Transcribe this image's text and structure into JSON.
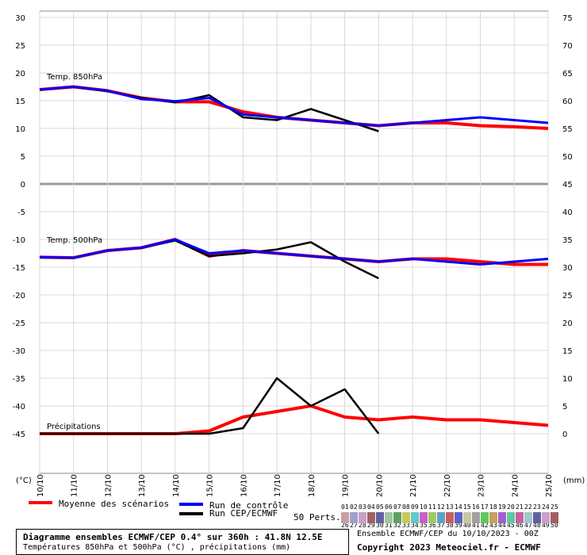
{
  "chart_data": {
    "type": "line",
    "left_axis": {
      "unit": "(°C)",
      "ticks": [
        30,
        25,
        20,
        15,
        10,
        5,
        0,
        -5,
        -10,
        -15,
        -20,
        -25,
        -30,
        -35,
        -40,
        -45
      ],
      "ylim": [
        -52,
        31
      ]
    },
    "right_axis": {
      "unit": "(mm)",
      "ticks": [
        75,
        70,
        65,
        60,
        55,
        50,
        45,
        40,
        35,
        30,
        25,
        20,
        15,
        10,
        5,
        0
      ]
    },
    "x_labels": [
      "10/10",
      "11/10",
      "12/10",
      "13/10",
      "14/10",
      "15/10",
      "16/10",
      "17/10",
      "18/10",
      "19/10",
      "20/10",
      "21/10",
      "22/10",
      "23/10",
      "24/10",
      "25/10"
    ],
    "panel_labels": {
      "t850": "Temp. 850hPa",
      "t500": "Temp. 500hPa",
      "precip": "Précipitations"
    },
    "grid": true,
    "series": [
      {
        "name": "Moyenne des scénarios",
        "color": "#ff0000",
        "panel": "t850",
        "values": [
          17,
          17.5,
          16.8,
          15.5,
          14.8,
          14.8,
          13,
          12,
          11.5,
          11,
          10.5,
          11,
          11,
          10.5,
          10.3,
          10
        ]
      },
      {
        "name": "Run CEP/ECMWF",
        "color": "#000000",
        "panel": "t850",
        "values": [
          17,
          17.5,
          16.7,
          15.5,
          14.7,
          16,
          12,
          11.5,
          13.5,
          11.5,
          9.5
        ]
      },
      {
        "name": "Run de contrôle",
        "color": "#0000ff",
        "panel": "t850",
        "values": [
          17,
          17.5,
          16.8,
          15.3,
          14.9,
          15.5,
          12.5,
          12,
          11.5,
          11,
          10.5,
          11,
          11.5,
          12,
          11.5,
          11
        ]
      },
      {
        "name": "Moyenne des scénarios",
        "color": "#ff0000",
        "panel": "t500",
        "values": [
          -13.2,
          -13.3,
          -12,
          -11.5,
          -10,
          -13,
          -12,
          -12.5,
          -13,
          -13.5,
          -14,
          -13.5,
          -13.5,
          -14,
          -14.5,
          -14.5
        ]
      },
      {
        "name": "Run CEP/ECMWF",
        "color": "#000000",
        "panel": "t500",
        "values": [
          -13.2,
          -13.3,
          -12,
          -11.5,
          -10.2,
          -13,
          -12.5,
          -11.8,
          -10.5,
          -14,
          -17
        ]
      },
      {
        "name": "Run de contrôle",
        "color": "#0000ff",
        "panel": "t500",
        "values": [
          -13.2,
          -13.3,
          -12,
          -11.5,
          -10,
          -12.5,
          -12,
          -12.5,
          -13,
          -13.5,
          -14,
          -13.5,
          -14,
          -14.5,
          -14,
          -13.5
        ]
      },
      {
        "name": "Moyenne des scénarios",
        "color": "#ff0000",
        "panel": "precip",
        "values": [
          0,
          0,
          0,
          0,
          0,
          0.5,
          3,
          4,
          5,
          3,
          2.5,
          3,
          2.5,
          2.5,
          2,
          1.5
        ]
      },
      {
        "name": "Run CEP/ECMWF",
        "color": "#000000",
        "panel": "precip",
        "values": [
          0,
          0,
          0,
          0,
          0,
          0,
          1,
          10,
          5,
          8,
          0
        ]
      }
    ]
  },
  "legend": {
    "mean": "Moyenne des scénarios",
    "control": "Run de contrôle",
    "run": "Run CEP/ECMWF",
    "perts": "50 Perts.",
    "perts_row1": [
      "01",
      "02",
      "03",
      "04",
      "05",
      "06",
      "07",
      "08",
      "09",
      "10",
      "11",
      "12",
      "13",
      "14",
      "15",
      "16",
      "17",
      "18",
      "19",
      "20",
      "21",
      "22",
      "23",
      "24",
      "25"
    ],
    "perts_row2": [
      "26",
      "27",
      "28",
      "29",
      "30",
      "31",
      "32",
      "33",
      "34",
      "35",
      "36",
      "37",
      "38",
      "39",
      "40",
      "41",
      "42",
      "43",
      "44",
      "45",
      "46",
      "47",
      "48",
      "49",
      "50"
    ]
  },
  "footer": {
    "title": "Diagramme ensembles ECMWF/CEP 0.4° sur 360h : 41.8N 12.5E",
    "subtitle": "Températures 850hPa et 500hPa (°C) , précipitations (mm)",
    "run_info": "Ensemble ECMWF/CEP du 10/10/2023 - 00Z",
    "copyright": "Copyright 2023 Meteociel.fr - ECMWF"
  }
}
